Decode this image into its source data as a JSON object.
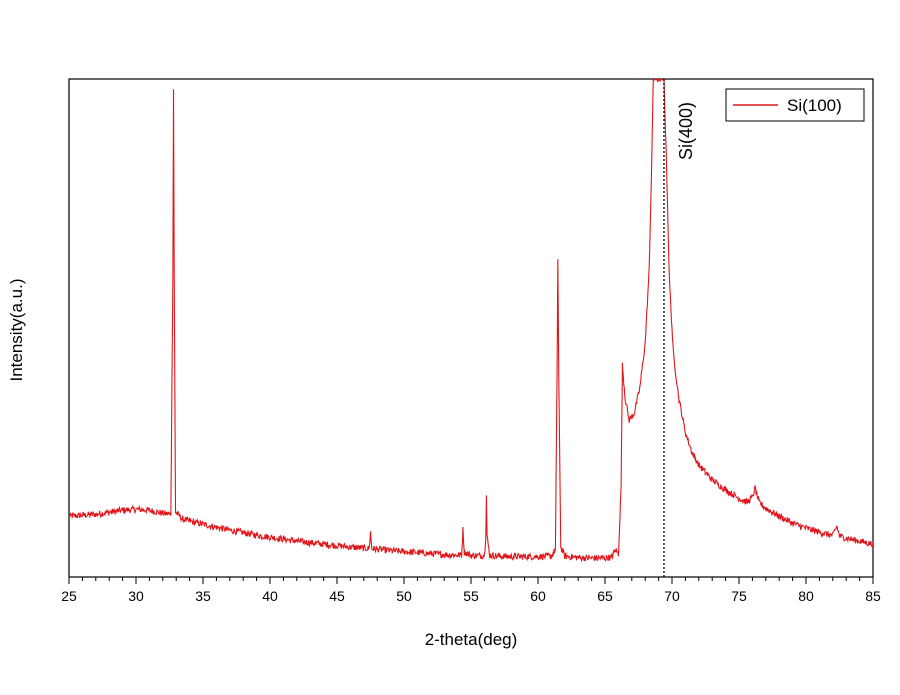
{
  "chart_data": {
    "type": "line",
    "title": "",
    "xlabel": "2-theta(deg)",
    "ylabel": "Intensity(a.u.)",
    "xlim": [
      25,
      85
    ],
    "ylim": [
      0,
      100
    ],
    "x_ticks": [
      25,
      30,
      35,
      40,
      45,
      50,
      55,
      60,
      65,
      70,
      75,
      80,
      85
    ],
    "x_tick_labels": [
      "25",
      "30",
      "35",
      "40",
      "45",
      "50",
      "55",
      "60",
      "65",
      "70",
      "75",
      "80",
      "85"
    ],
    "y_ticks_shown": false,
    "grid": false,
    "legend": {
      "position": "top-right",
      "entries": [
        "Si(100)"
      ]
    },
    "series": [
      {
        "name": "Si(100)",
        "color": "#e0161b",
        "points": [
          [
            25,
            12.2
          ],
          [
            26,
            12.4
          ],
          [
            27,
            12.6
          ],
          [
            28,
            13.0
          ],
          [
            29,
            13.4
          ],
          [
            30,
            13.6
          ],
          [
            31,
            13.4
          ],
          [
            32,
            12.8
          ],
          [
            32.6,
            12.6
          ],
          [
            32.75,
            60
          ],
          [
            32.8,
            98
          ],
          [
            32.85,
            62
          ],
          [
            32.95,
            13
          ],
          [
            33.5,
            11.6
          ],
          [
            34,
            11.2
          ],
          [
            35,
            10.6
          ],
          [
            36,
            10.0
          ],
          [
            37,
            9.4
          ],
          [
            38,
            8.9
          ],
          [
            39,
            8.4
          ],
          [
            40,
            8.0
          ],
          [
            41,
            7.6
          ],
          [
            42,
            7.2
          ],
          [
            43,
            6.9
          ],
          [
            44,
            6.6
          ],
          [
            45,
            6.3
          ],
          [
            46,
            6.0
          ],
          [
            47,
            5.8
          ],
          [
            47.4,
            5.7
          ],
          [
            47.5,
            9.0
          ],
          [
            47.6,
            5.7
          ],
          [
            48,
            5.6
          ],
          [
            49,
            5.3
          ],
          [
            50,
            5.1
          ],
          [
            51,
            4.9
          ],
          [
            52,
            4.7
          ],
          [
            53,
            4.5
          ],
          [
            54,
            4.4
          ],
          [
            54.3,
            4.4
          ],
          [
            54.4,
            9.5
          ],
          [
            54.5,
            5.0
          ],
          [
            55,
            4.3
          ],
          [
            56,
            4.3
          ],
          [
            56.1,
            8
          ],
          [
            56.15,
            16.3
          ],
          [
            56.2,
            8
          ],
          [
            56.4,
            4.4
          ],
          [
            57,
            4.2
          ],
          [
            58,
            4.1
          ],
          [
            59,
            4.1
          ],
          [
            60,
            4.1
          ],
          [
            61,
            4.2
          ],
          [
            61.3,
            5.5
          ],
          [
            61.42,
            40
          ],
          [
            61.48,
            64
          ],
          [
            61.55,
            40
          ],
          [
            61.7,
            6
          ],
          [
            62,
            4.2
          ],
          [
            63,
            3.9
          ],
          [
            64,
            3.8
          ],
          [
            65,
            3.8
          ],
          [
            65.5,
            4.0
          ],
          [
            65.8,
            5.5
          ],
          [
            66.0,
            4.5
          ],
          [
            66.2,
            18
          ],
          [
            66.3,
            42.5
          ],
          [
            66.5,
            36
          ],
          [
            66.8,
            31.5
          ],
          [
            67.2,
            33
          ],
          [
            67.6,
            38
          ],
          [
            68.0,
            47
          ],
          [
            68.3,
            62
          ],
          [
            68.5,
            85
          ],
          [
            68.6,
            100
          ],
          [
            69.4,
            100
          ],
          [
            69.6,
            82
          ],
          [
            69.8,
            60
          ],
          [
            70.1,
            45
          ],
          [
            70.5,
            36
          ],
          [
            71,
            29
          ],
          [
            71.5,
            25
          ],
          [
            72,
            22.5
          ],
          [
            73,
            19.5
          ],
          [
            74,
            17.5
          ],
          [
            75,
            15.8
          ],
          [
            75.6,
            15.0
          ],
          [
            76.0,
            16
          ],
          [
            76.2,
            17.8
          ],
          [
            76.5,
            15
          ],
          [
            77,
            13.8
          ],
          [
            78,
            12.2
          ],
          [
            79,
            10.8
          ],
          [
            80,
            9.8
          ],
          [
            81,
            9.0
          ],
          [
            82,
            8.3
          ],
          [
            82.3,
            10.2
          ],
          [
            82.5,
            8.2
          ],
          [
            83,
            7.8
          ],
          [
            84,
            7.2
          ],
          [
            85,
            6.6
          ]
        ]
      }
    ],
    "annotations": [
      {
        "type": "vertical-dashed-line",
        "x": 69.4,
        "label": "Si(400)"
      }
    ]
  }
}
